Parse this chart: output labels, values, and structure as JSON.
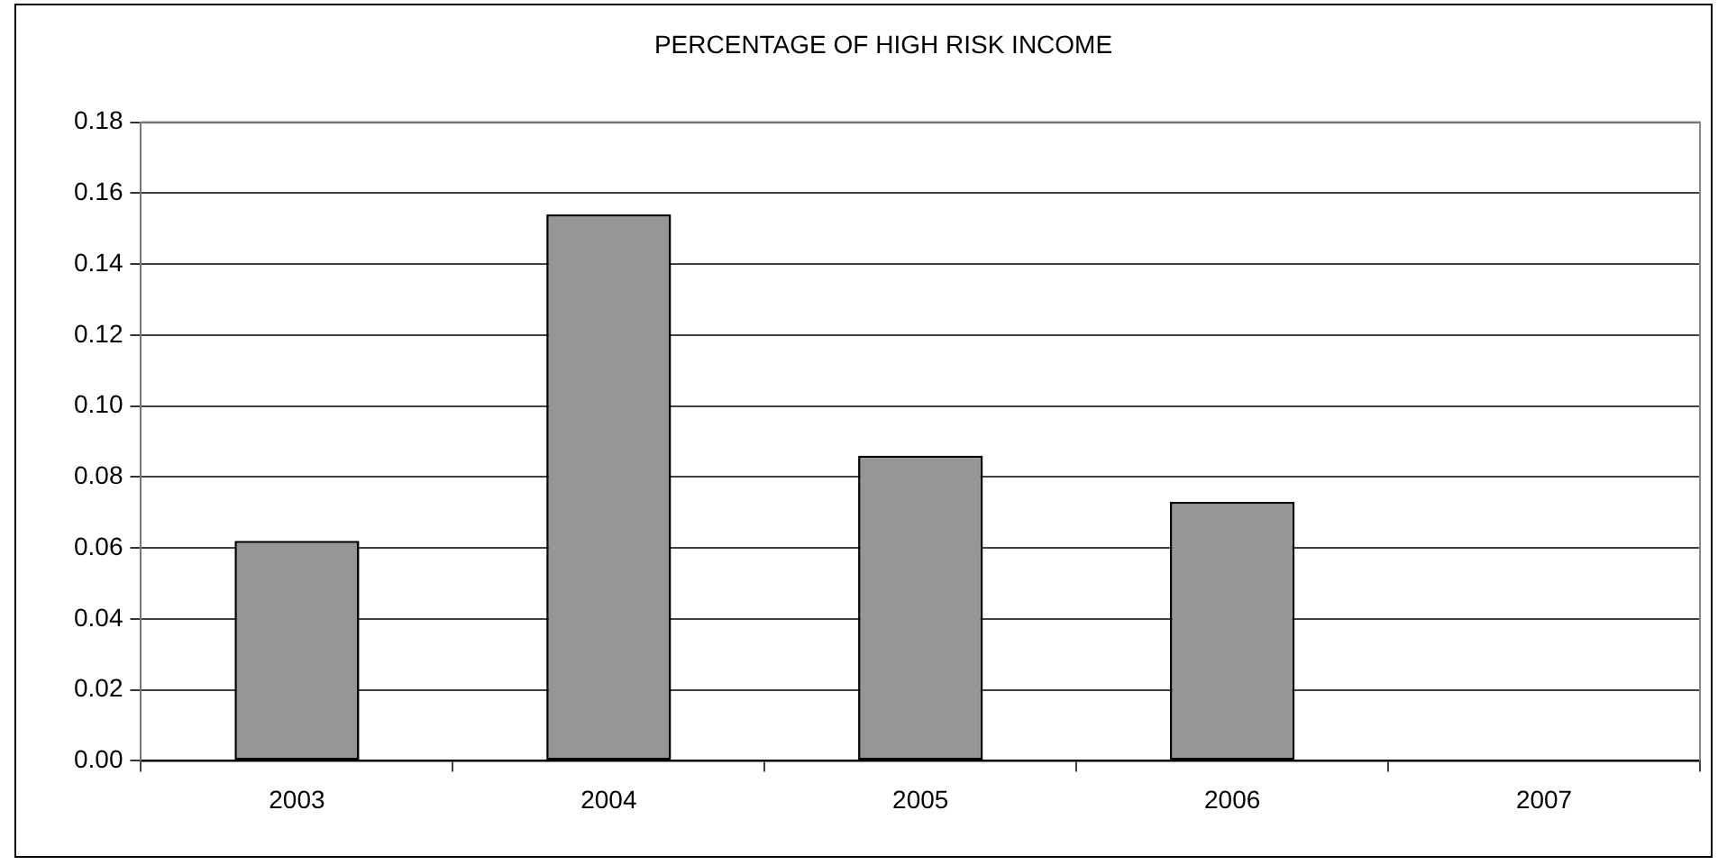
{
  "chart_data": {
    "type": "bar",
    "title": "PERCENTAGE OF HIGH RISK INCOME",
    "categories": [
      "2003",
      "2004",
      "2005",
      "2006",
      "2007"
    ],
    "values": [
      0.062,
      0.154,
      0.086,
      0.073,
      0
    ],
    "color": "#969696",
    "ylim": [
      0,
      0.18
    ],
    "yticks": [
      {
        "value": 0,
        "label": "0.00"
      },
      {
        "value": 0.02,
        "label": "0.02"
      },
      {
        "value": 0.04,
        "label": "0.04"
      },
      {
        "value": 0.06,
        "label": "0.06"
      },
      {
        "value": 0.08,
        "label": "0.08"
      },
      {
        "value": 0.1,
        "label": "0.10"
      },
      {
        "value": 0.12,
        "label": "0.12"
      },
      {
        "value": 0.14,
        "label": "0.14"
      },
      {
        "value": 0.16,
        "label": "0.16"
      },
      {
        "value": 0.18,
        "label": "0.18"
      }
    ],
    "grid": "y",
    "legend": false
  }
}
